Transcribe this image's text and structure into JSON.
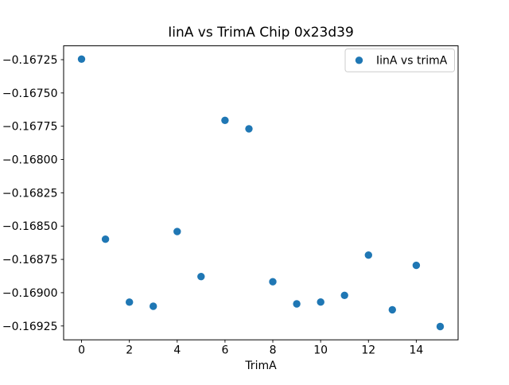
{
  "figure": {
    "title": "IinA vs TrimA Chip 0x23d39",
    "x_axis_label": "TrimA"
  },
  "legend": {
    "entries": [
      "IinA vs trimA"
    ],
    "position": "upper right"
  },
  "chart_data": {
    "type": "scatter",
    "title": "IinA vs TrimA Chip 0x23d39",
    "xlabel": "TrimA",
    "ylabel": "",
    "series": [
      {
        "name": "IinA vs trimA",
        "x": [
          0,
          1,
          2,
          3,
          4,
          5,
          6,
          7,
          8,
          9,
          10,
          11,
          12,
          13,
          14,
          15
        ],
        "y": [
          -0.167246,
          -0.168598,
          -0.169071,
          -0.169102,
          -0.168541,
          -0.168879,
          -0.167706,
          -0.167769,
          -0.168918,
          -0.169084,
          -0.16907,
          -0.16902,
          -0.168718,
          -0.169128,
          -0.168795,
          -0.169254
        ]
      }
    ],
    "xticks": [
      0,
      2,
      4,
      6,
      8,
      10,
      12,
      14
    ],
    "yticks": [
      -0.16725,
      -0.1675,
      -0.16775,
      -0.168,
      -0.16825,
      -0.1685,
      -0.16875,
      -0.169,
      -0.16925
    ],
    "xlim": [
      -0.75,
      15.75
    ],
    "ylim": [
      -0.169354,
      -0.167146
    ],
    "grid": false,
    "legend_position": "upper right",
    "marker_color": "#1f77b4",
    "spine_color": "#000000",
    "legend_edge_color": "#cccccc"
  }
}
